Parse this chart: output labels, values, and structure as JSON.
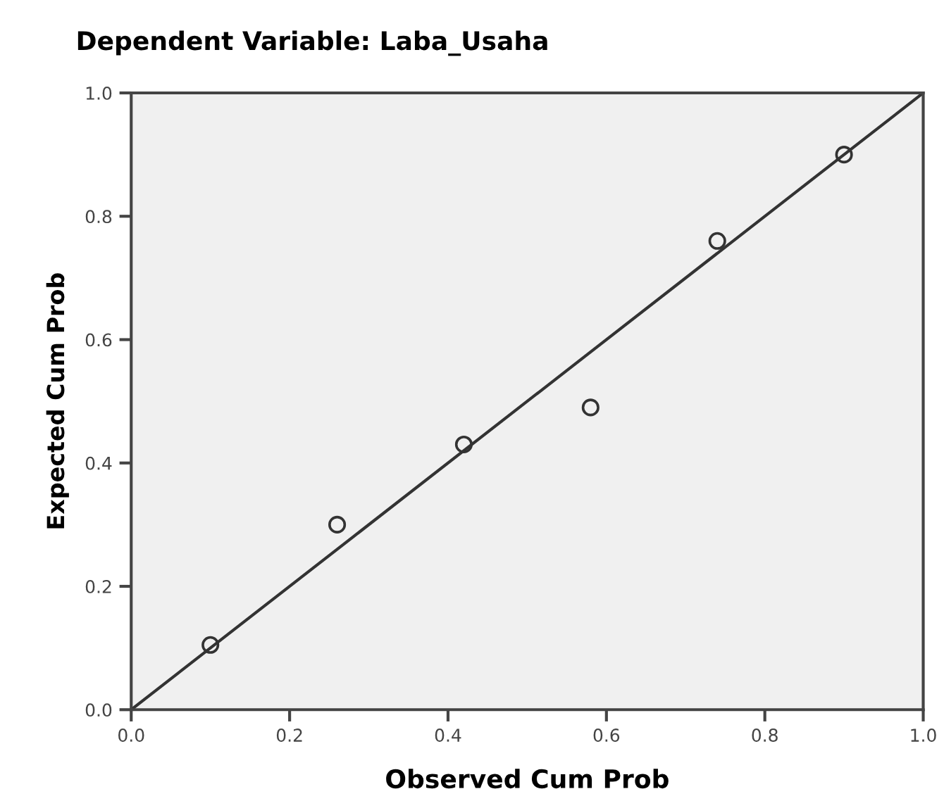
{
  "chart_data": {
    "type": "scatter",
    "title": "Dependent Variable: Laba_Usaha",
    "xlabel": "Observed Cum Prob",
    "ylabel": "Expected Cum Prob",
    "series": [
      {
        "color": "#333333",
        "x": [
          0.1,
          0.26,
          0.42,
          0.58,
          0.74,
          0.9
        ],
        "values": [
          0.105,
          0.3,
          0.43,
          0.49,
          0.76,
          0.9
        ],
        "marker": "circle"
      },
      {
        "type": "line",
        "color": "#333333",
        "x": [
          0,
          1
        ],
        "values": [
          0,
          1
        ],
        "marker": "none",
        "line_style": "solid"
      }
    ],
    "xlim": [
      0,
      1
    ],
    "ylim": [
      0,
      1
    ],
    "xticks": [
      {
        "value": 0,
        "label": "0.0"
      },
      0.2,
      0.4,
      0.6,
      0.8,
      {
        "value": 1,
        "label": "1.0"
      }
    ],
    "yticks": [
      {
        "value": 0,
        "label": "0.0"
      },
      0.2,
      0.4,
      0.6,
      0.8,
      {
        "value": 1,
        "label": "1.0"
      }
    ],
    "grid": false,
    "legend": false
  }
}
